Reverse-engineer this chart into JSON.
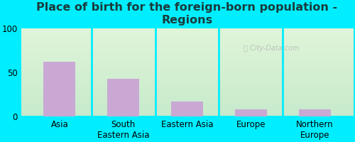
{
  "title_line1": "Place of birth for the foreign-born population -",
  "title_line2": "Regions",
  "categories": [
    "Asia",
    "South\nEastern Asia",
    "Eastern Asia",
    "Europe",
    "Northern\nEurope"
  ],
  "values": [
    62,
    43,
    17,
    8,
    8
  ],
  "bar_color": "#c9a8d4",
  "ylim": [
    0,
    100
  ],
  "yticks": [
    0,
    50,
    100
  ],
  "background_color": "#00eeff",
  "plot_bg_topleft": "#d8edcc",
  "plot_bg_topright": "#e8f5f0",
  "plot_bg_bottom": "#c5e8d0",
  "title_color": "#1a3a3a",
  "title_fontsize": 11.5,
  "tick_fontsize": 8.5,
  "bar_width": 0.5,
  "divider_color": "#00eeff",
  "watermark": "City-Data.com"
}
